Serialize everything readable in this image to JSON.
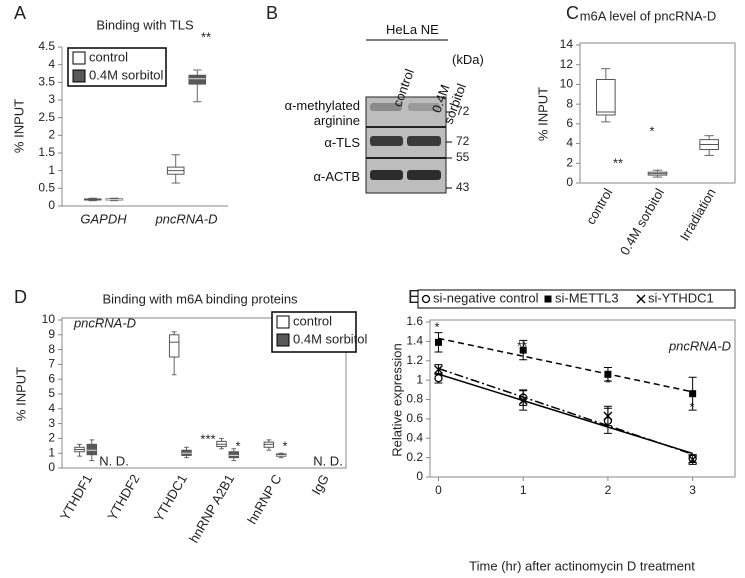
{
  "panel_labels": [
    "A",
    "B",
    "C",
    "D",
    "E"
  ],
  "blot": {
    "header": "HeLa NE",
    "lanes": [
      "control",
      "0.4M sorbitol"
    ],
    "unit": "(kDa)",
    "antibodies": [
      "α-methylated arginine",
      "α-TLS",
      "α-ACTB"
    ],
    "markers": [
      72,
      72,
      55,
      43
    ]
  },
  "chart_data": [
    {
      "type": "box",
      "title": "Binding with TLS",
      "y_label": "% INPUT",
      "categories": [
        "GAPDH",
        "pncRNA-D"
      ],
      "series": [
        {
          "name": "control",
          "color": "#ffffff",
          "values": [
            [
              0.15,
              0.17,
              0.18,
              0.2,
              0.22
            ],
            [
              0.65,
              0.9,
              1.0,
              1.1,
              1.45
            ]
          ]
        },
        {
          "name": "0.4M sorbitol",
          "color": "#595959",
          "values": [
            [
              0.15,
              0.17,
              0.18,
              0.2,
              0.22
            ],
            [
              2.95,
              3.45,
              3.6,
              3.7,
              3.85
            ]
          ]
        }
      ],
      "ylim": [
        0,
        4.5
      ],
      "yticks": [
        0,
        0.5,
        1,
        1.5,
        2,
        2.5,
        3,
        3.5,
        4,
        4.5
      ],
      "annotations": [
        "**"
      ]
    },
    {
      "type": "box",
      "title": "m6A level of pncRNA-D",
      "y_label": "% INPUT",
      "categories": [
        "control",
        "0.4M sorbitol",
        "Irradiation"
      ],
      "color": "#ffffff",
      "values": [
        [
          6.2,
          6.9,
          7.2,
          10.5,
          11.6
        ],
        [
          0.6,
          0.8,
          0.95,
          1.1,
          1.3
        ],
        [
          2.8,
          3.4,
          3.9,
          4.4,
          4.8
        ]
      ],
      "ylim": [
        0,
        14
      ],
      "yticks": [
        0,
        2,
        4,
        6,
        8,
        10,
        12,
        14
      ],
      "annotations": [
        "**",
        "*"
      ]
    },
    {
      "type": "box",
      "title": "Binding with m6A binding proteins",
      "y_label": "% INPUT",
      "categories": [
        "YTHDF1",
        "YTHDF2",
        "YTHDC1",
        "hnRNP A2B1",
        "hnRNP C",
        "IgG"
      ],
      "series": [
        {
          "name": "control",
          "color": "#ffffff",
          "values": [
            [
              0.8,
              1.1,
              1.25,
              1.4,
              1.6
            ],
            null,
            [
              6.3,
              7.5,
              8.5,
              9.0,
              9.2
            ],
            [
              1.3,
              1.45,
              1.6,
              1.8,
              2.0
            ],
            [
              1.2,
              1.4,
              1.6,
              1.75,
              1.9
            ],
            null
          ]
        },
        {
          "name": "0.4M sorbitol",
          "color": "#595959",
          "values": [
            [
              0.5,
              0.9,
              1.2,
              1.6,
              1.9
            ],
            null,
            [
              0.7,
              0.85,
              1.0,
              1.2,
              1.4
            ],
            [
              0.5,
              0.7,
              0.85,
              1.1,
              1.3
            ],
            [
              0.7,
              0.8,
              0.85,
              0.95,
              1.0
            ],
            null
          ]
        }
      ],
      "ylim": [
        0,
        10
      ],
      "yticks": [
        0,
        1,
        2,
        3,
        4,
        5,
        6,
        7,
        8,
        9,
        10
      ],
      "annotations": [
        "***",
        "*",
        "*",
        "N. D.",
        "N. D.",
        "pncRNA-D"
      ]
    },
    {
      "type": "line",
      "x_label": "Time (hr) after actinomycin D treatment",
      "y_label": "Relative expression",
      "x": [
        0,
        1,
        2,
        3
      ],
      "series": [
        {
          "name": "si-negative control",
          "color": "#000000",
          "marker": "circle",
          "dash": "solid",
          "values": [
            1.02,
            0.82,
            0.58,
            0.19
          ],
          "errors": [
            0.05,
            0.08,
            0.13,
            0.04
          ]
        },
        {
          "name": "si-METTL3",
          "color": "#000000",
          "marker": "square",
          "dash": "dashed",
          "values": [
            1.39,
            1.31,
            1.06,
            0.86
          ],
          "errors": [
            0.1,
            0.1,
            0.07,
            0.17
          ]
        },
        {
          "name": "si-YTHDC1",
          "color": "#000000",
          "marker": "x",
          "dash": "dashdot",
          "values": [
            1.11,
            0.79,
            0.63,
            0.18
          ],
          "errors": [
            0.05,
            0.1,
            0.1,
            0.05
          ]
        }
      ],
      "xlim": [
        -0.1,
        3.5
      ],
      "xticks": [
        0,
        1,
        2,
        3
      ],
      "ylim": [
        0,
        1.6
      ],
      "yticks": [
        0,
        0.2,
        0.4,
        0.6,
        0.8,
        1,
        1.2,
        1.4,
        1.6
      ],
      "annotations": [
        "*",
        "**",
        "*",
        "*",
        "pncRNA-D"
      ]
    }
  ]
}
